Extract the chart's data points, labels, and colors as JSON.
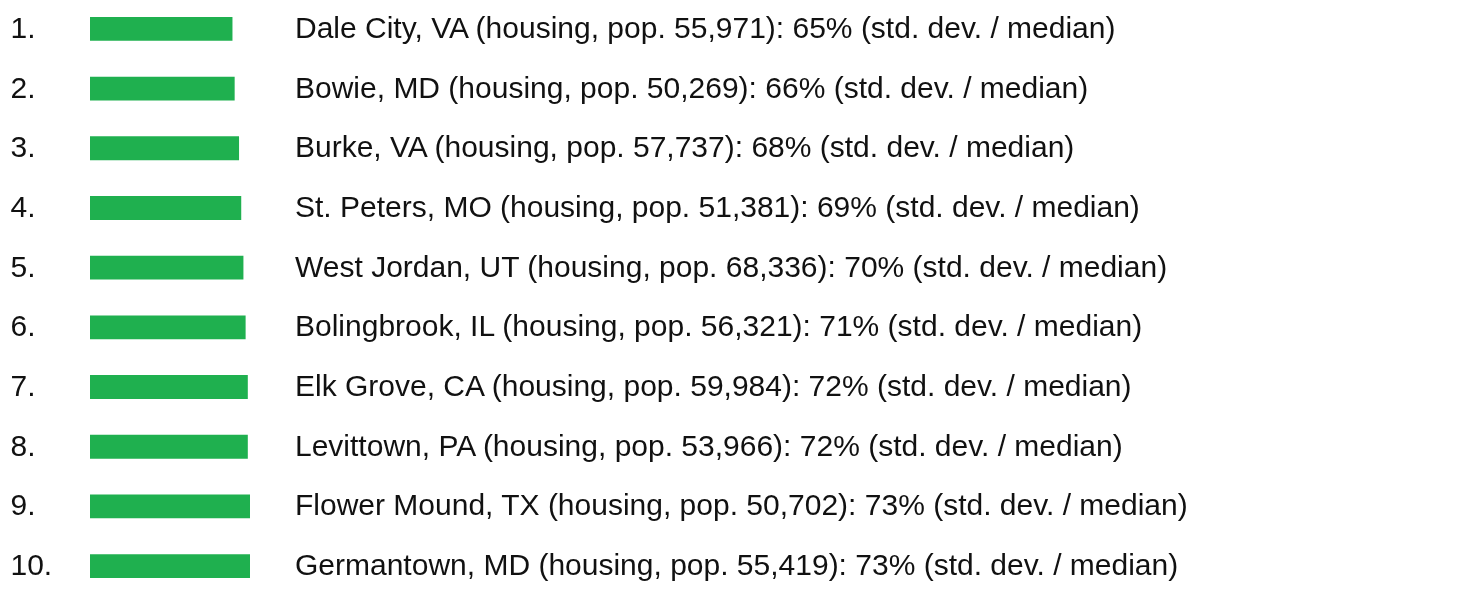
{
  "chart_data": {
    "type": "bar",
    "orientation": "horizontal",
    "categories": [
      "1.",
      "2.",
      "3.",
      "4.",
      "5.",
      "6.",
      "7.",
      "8.",
      "9.",
      "10."
    ],
    "values": [
      65,
      66,
      68,
      69,
      70,
      71,
      72,
      72,
      73,
      73
    ],
    "color": "#1fb04f",
    "value_labels": [
      "Dale City, VA (housing, pop. 55,971): 65% (std. dev. / median)",
      "Bowie, MD (housing, pop. 50,269): 66% (std. dev. / median)",
      "Burke, VA (housing, pop. 57,737): 68% (std. dev. / median)",
      "St. Peters, MO (housing, pop. 51,381): 69% (std. dev. / median)",
      "West Jordan, UT (housing, pop. 68,336): 70% (std. dev. / median)",
      "Bolingbrook, IL (housing, pop. 56,321): 71% (std. dev. / median)",
      "Elk Grove, CA (housing, pop. 59,984): 72% (std. dev. / median)",
      "Levittown, PA (housing, pop. 53,966): 72% (std. dev. / median)",
      "Flower Mound, TX (housing, pop. 50,702): 73% (std. dev. / median)",
      "Germantown, MD (housing, pop. 55,419): 73% (std. dev. / median)"
    ]
  }
}
